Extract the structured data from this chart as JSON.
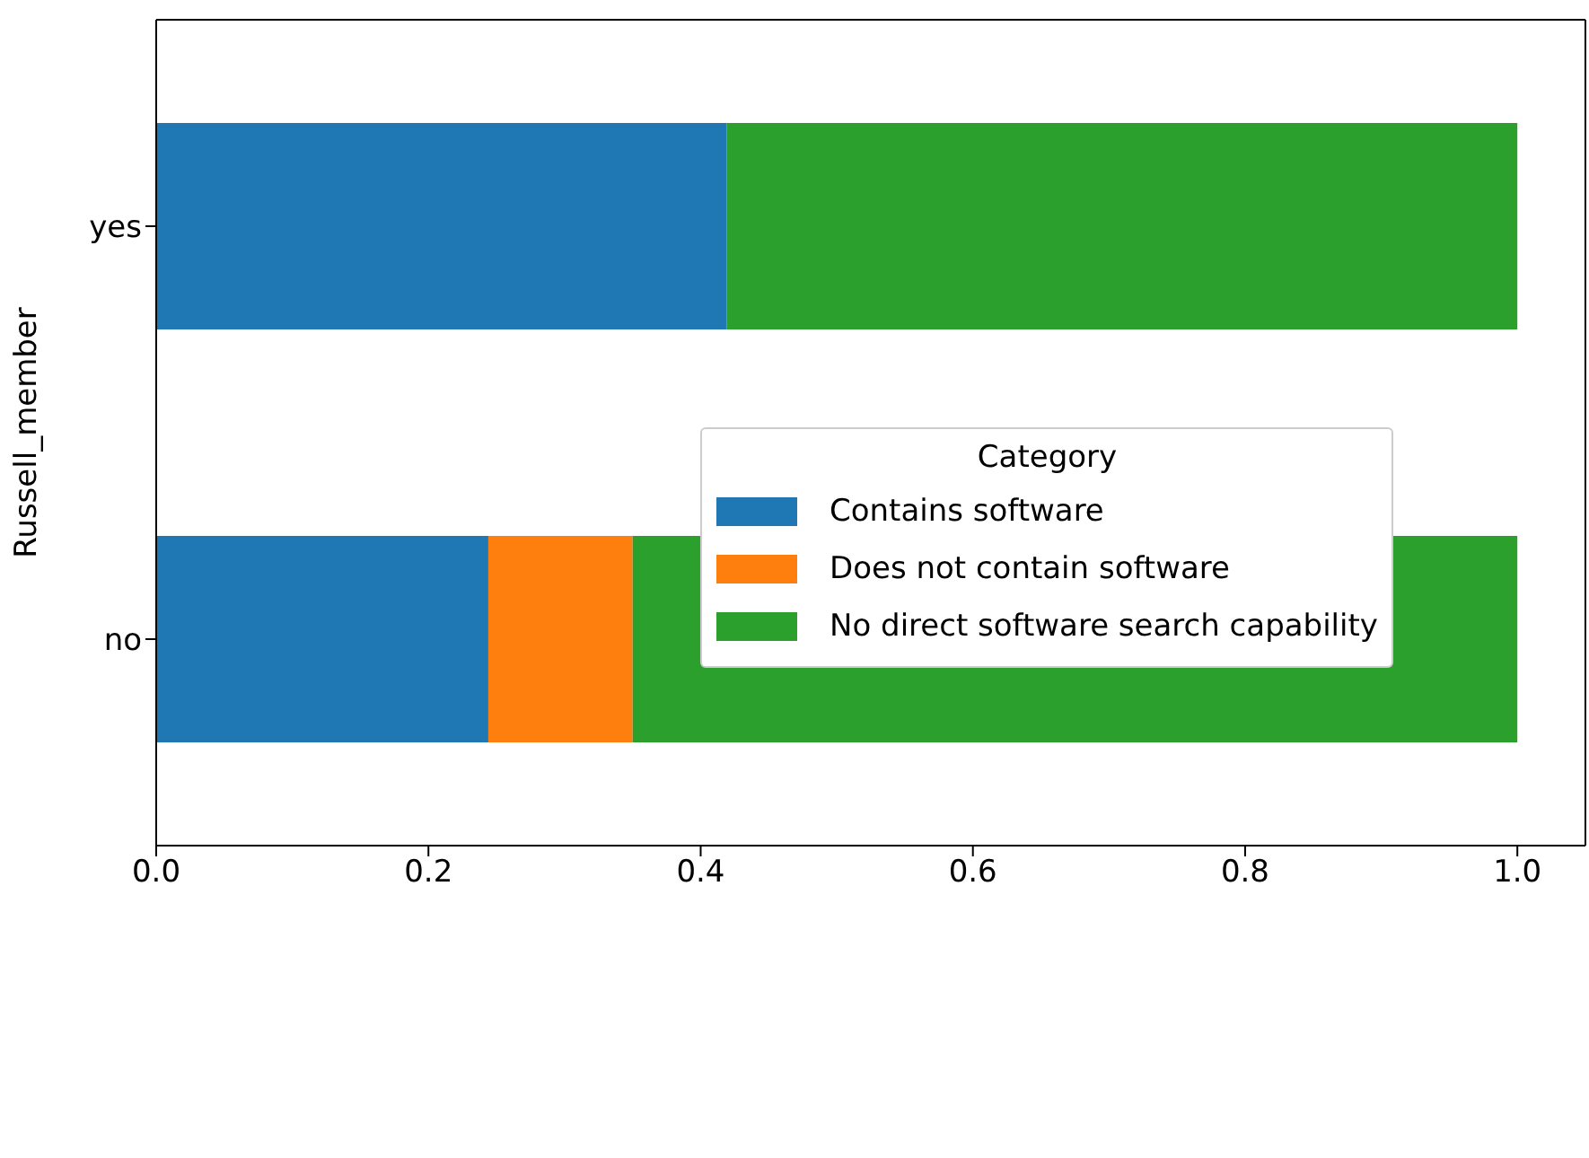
{
  "chart_data": {
    "type": "bar",
    "orientation": "horizontal",
    "stacked": true,
    "ylabel": "Russell_member",
    "legend_title": "Category",
    "categories": [
      "yes",
      "no"
    ],
    "series": [
      {
        "name": "Contains software",
        "color": "#1f77b4",
        "values": [
          0.419,
          0.244
        ]
      },
      {
        "name": "Does not contain software",
        "color": "#ff7f0e",
        "values": [
          0,
          0.106
        ]
      },
      {
        "name": "No direct software search capability",
        "color": "#2ca02c",
        "values": [
          0.581,
          0.65
        ]
      }
    ],
    "xlim": [
      0,
      1.05
    ],
    "xticks": [
      {
        "value": 0,
        "label": "0.0"
      },
      {
        "value": 0.2,
        "label": "0.2"
      },
      {
        "value": 0.4,
        "label": "0.4"
      },
      {
        "value": 0.6,
        "label": "0.6"
      },
      {
        "value": 0.8,
        "label": "0.8"
      },
      {
        "value": 1,
        "label": "1.0"
      }
    ],
    "grid": false,
    "legend": "right"
  }
}
